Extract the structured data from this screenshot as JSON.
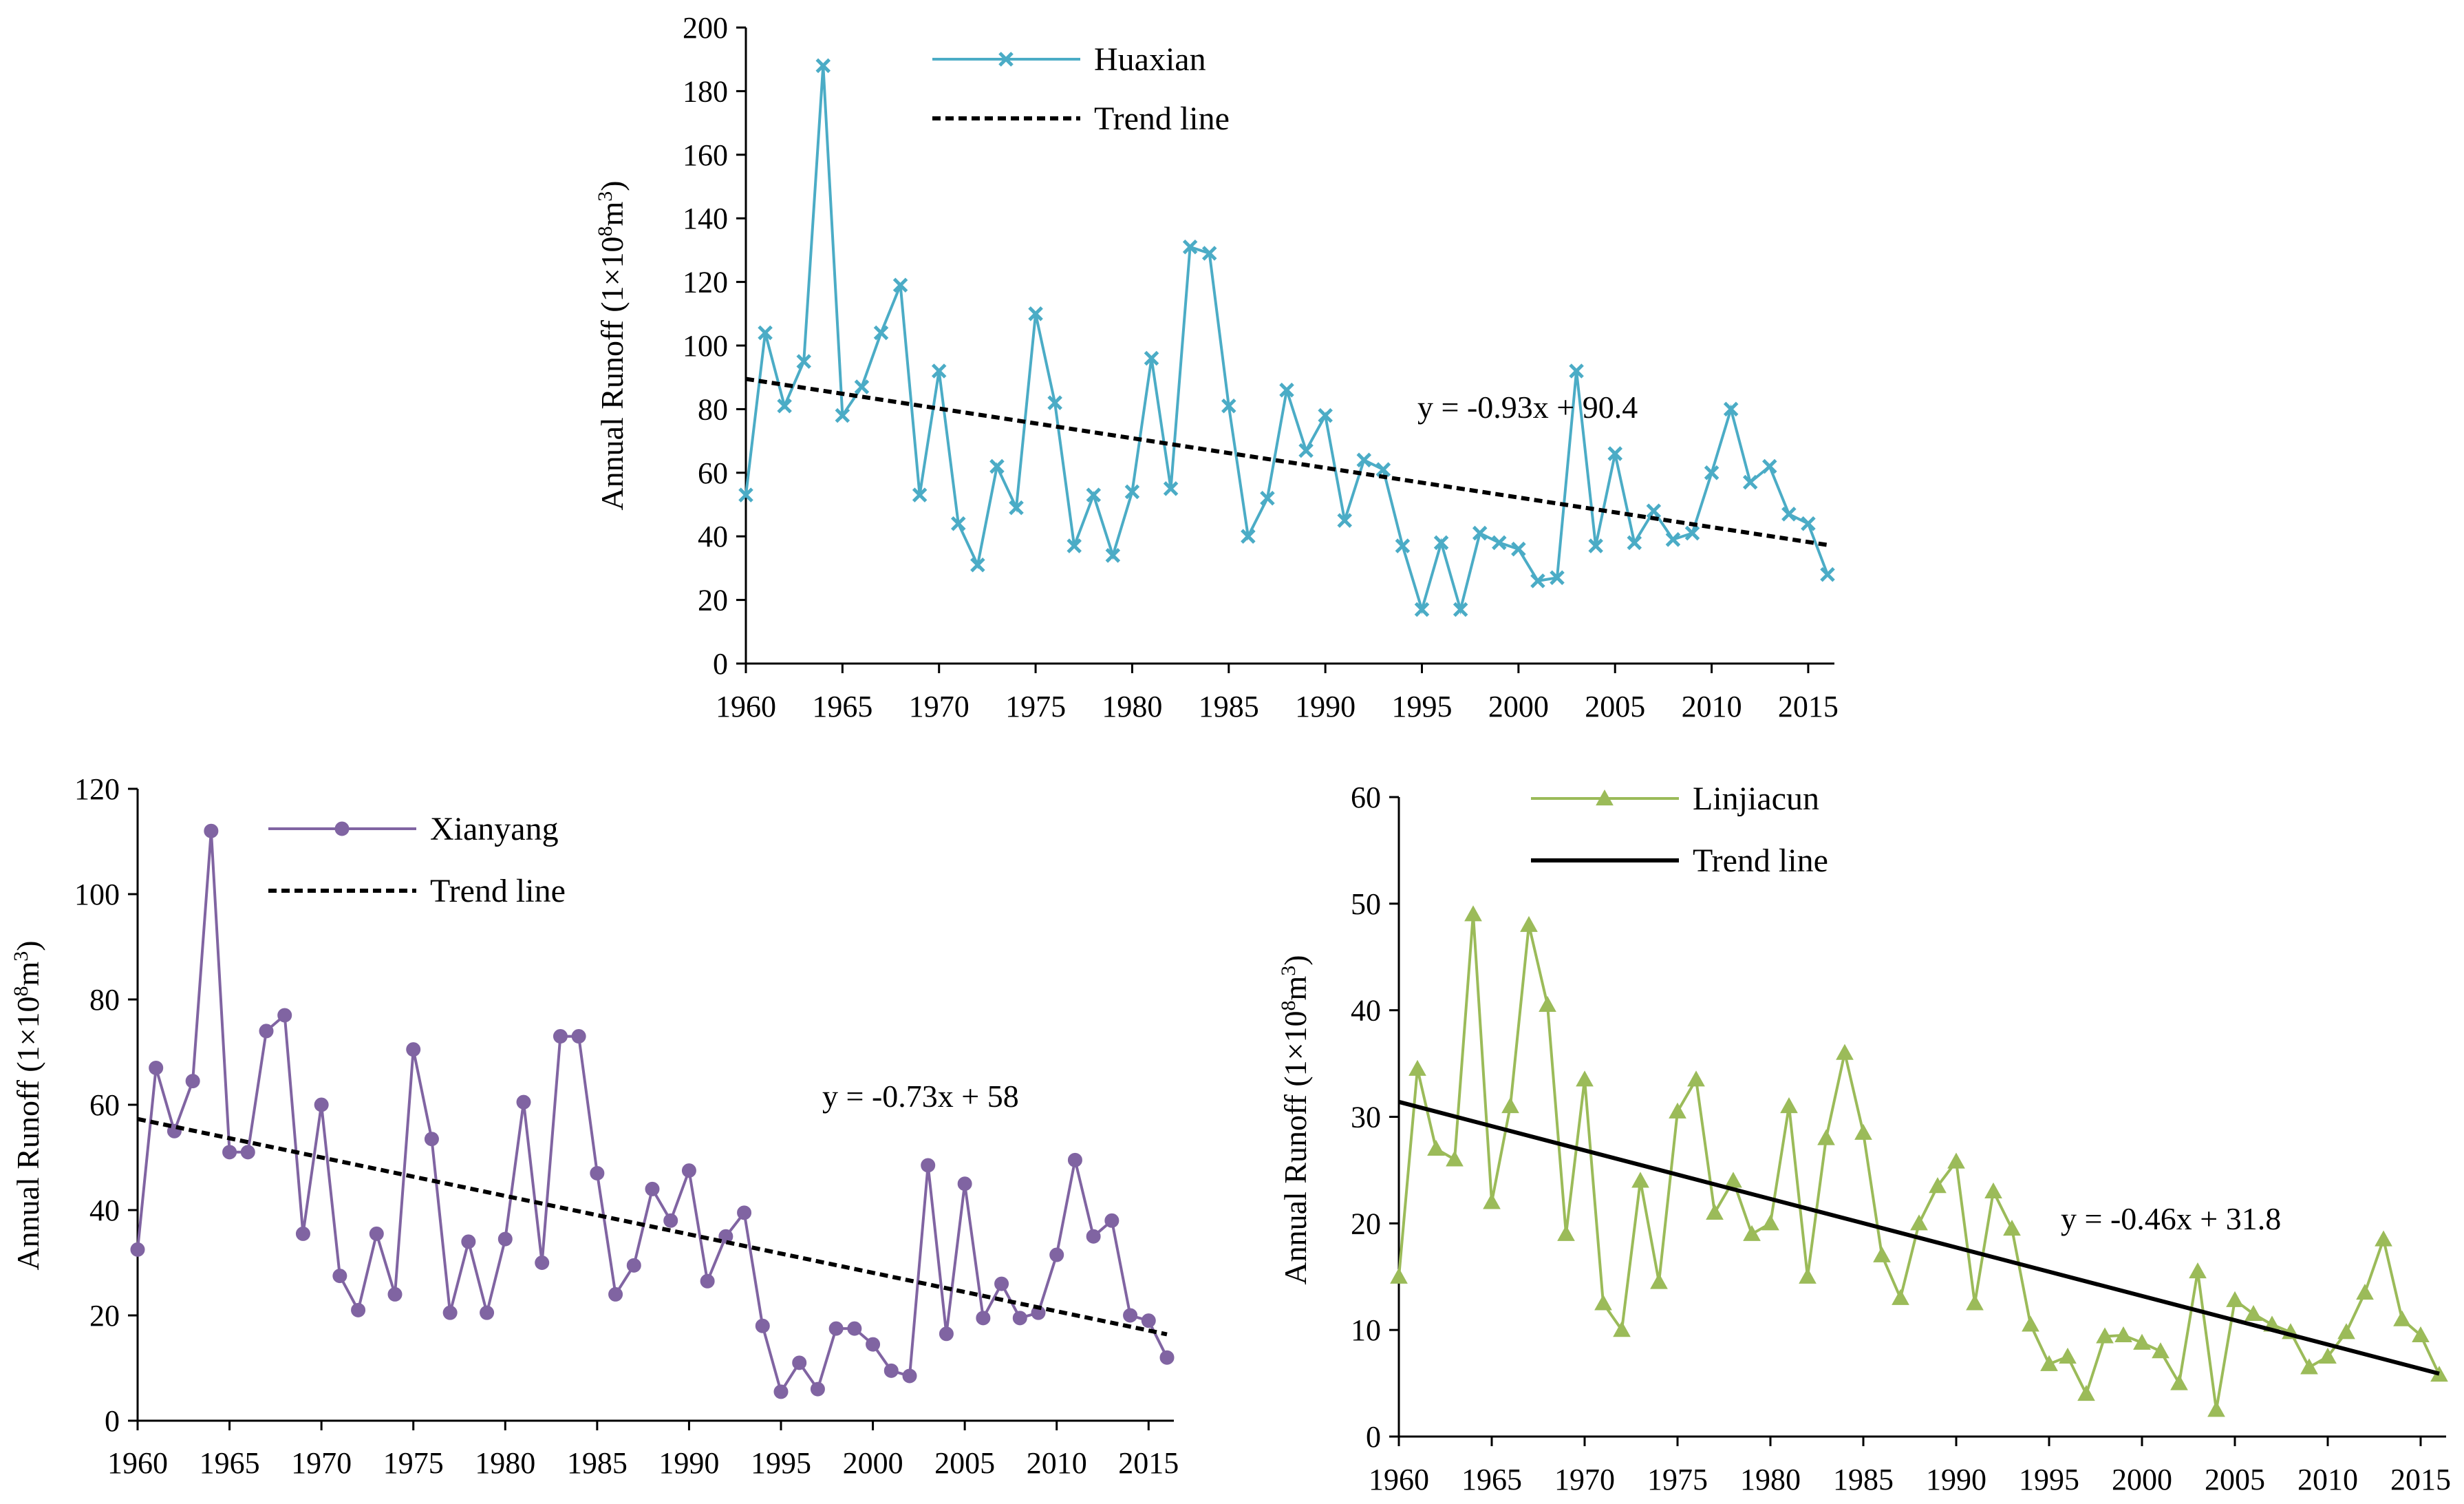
{
  "chart_data": [
    {
      "type": "line",
      "key": "huaxian",
      "ylabel": "Annual Runoff",
      "ylabel_unit_pre": "(1×10",
      "ylabel_unit_exp1": "8",
      "ylabel_unit_mid": "m",
      "ylabel_unit_exp2": "3",
      "ylabel_unit_post": ")",
      "xlim": [
        1960,
        2016
      ],
      "ylim": [
        0,
        200
      ],
      "xticks": [
        "1960",
        "1965",
        "1970",
        "1975",
        "1980",
        "1985",
        "1990",
        "1995",
        "2000",
        "2005",
        "2010",
        "2015"
      ],
      "yticks": [
        "0",
        "20",
        "40",
        "60",
        "80",
        "100",
        "120",
        "140",
        "160",
        "180",
        "200"
      ],
      "series": [
        {
          "name": "Huaxian",
          "color": "#4bacc6",
          "marker": "x",
          "x": [
            1960,
            1961,
            1962,
            1963,
            1964,
            1965,
            1966,
            1967,
            1968,
            1969,
            1970,
            1971,
            1972,
            1973,
            1974,
            1975,
            1976,
            1977,
            1978,
            1979,
            1980,
            1981,
            1982,
            1983,
            1984,
            1985,
            1986,
            1987,
            1988,
            1989,
            1990,
            1991,
            1992,
            1993,
            1994,
            1995,
            1996,
            1997,
            1998,
            1999,
            2000,
            2001,
            2002,
            2003,
            2004,
            2005,
            2006,
            2007,
            2008,
            2009,
            2010,
            2011,
            2012,
            2013,
            2014,
            2015,
            2016
          ],
          "values": [
            53,
            104,
            81,
            95,
            188,
            78,
            87,
            104,
            119,
            53,
            92,
            44,
            31,
            62,
            49,
            110,
            82,
            37,
            53,
            34,
            54,
            96,
            55,
            131,
            129,
            81,
            40,
            52,
            86,
            67,
            78,
            45,
            64,
            61,
            37,
            17,
            38,
            17,
            41,
            38,
            36,
            26,
            27,
            92,
            37,
            66,
            38,
            48,
            39,
            41,
            60,
            80,
            57,
            62,
            47,
            44,
            28
          ]
        },
        {
          "name": "Trend line",
          "color": "#000000",
          "style": "dashed",
          "x": [
            1960,
            2016
          ],
          "values": [
            89.5,
            37.3
          ]
        }
      ],
      "equation": "y = -0.93x + 90.4"
    },
    {
      "type": "line",
      "key": "xianyang",
      "ylabel": "Annual Runoff",
      "ylabel_unit_pre": "(1×10",
      "ylabel_unit_exp1": "8",
      "ylabel_unit_mid": "m",
      "ylabel_unit_exp2": "3",
      "ylabel_unit_post": ")",
      "xlim": [
        1960,
        2016
      ],
      "ylim": [
        0,
        120
      ],
      "xticks": [
        "1960",
        "1965",
        "1970",
        "1975",
        "1980",
        "1985",
        "1990",
        "1995",
        "2000",
        "2005",
        "2010",
        "2015"
      ],
      "yticks": [
        "0",
        "20",
        "40",
        "60",
        "80",
        "100",
        "120"
      ],
      "series": [
        {
          "name": "Xianyang",
          "color": "#8064a2",
          "marker": "circle",
          "x": [
            1960,
            1961,
            1962,
            1963,
            1964,
            1965,
            1966,
            1967,
            1968,
            1969,
            1970,
            1971,
            1972,
            1973,
            1974,
            1975,
            1976,
            1977,
            1978,
            1979,
            1980,
            1981,
            1982,
            1983,
            1984,
            1985,
            1986,
            1987,
            1988,
            1989,
            1990,
            1991,
            1992,
            1993,
            1994,
            1995,
            1996,
            1997,
            1998,
            1999,
            2000,
            2001,
            2002,
            2003,
            2004,
            2005,
            2006,
            2007,
            2008,
            2009,
            2010,
            2011,
            2012,
            2013,
            2014,
            2015,
            2016
          ],
          "values": [
            32.5,
            67,
            55,
            64.5,
            112,
            51,
            51,
            74,
            77,
            35.5,
            60,
            27.5,
            21,
            35.5,
            24,
            70.5,
            53.5,
            20.5,
            34,
            20.5,
            34.5,
            60.5,
            30,
            73,
            73,
            47,
            24,
            29.5,
            44,
            38,
            47.5,
            26.5,
            35,
            39.5,
            18,
            5.5,
            11,
            6,
            17.5,
            17.5,
            14.5,
            9.5,
            8.5,
            48.5,
            16.5,
            45,
            19.5,
            26,
            19.5,
            20.5,
            31.5,
            49.5,
            35,
            38,
            20,
            19,
            12
          ]
        },
        {
          "name": "Trend line",
          "color": "#000000",
          "style": "dashed",
          "x": [
            1960,
            2016
          ],
          "values": [
            57.3,
            16.4
          ]
        }
      ],
      "equation": "y = -0.73x + 58"
    },
    {
      "type": "line",
      "key": "linjiacun",
      "ylabel": "Annual Runoff",
      "ylabel_unit_pre": "(1×10",
      "ylabel_unit_exp1": "8",
      "ylabel_unit_mid": "m",
      "ylabel_unit_exp2": "3",
      "ylabel_unit_post": ")",
      "xlim": [
        1960,
        2016
      ],
      "ylim": [
        0,
        60
      ],
      "xticks": [
        "1960",
        "1965",
        "1970",
        "1975",
        "1980",
        "1985",
        "1990",
        "1995",
        "2000",
        "2005",
        "2010",
        "2015"
      ],
      "yticks": [
        "0",
        "10",
        "20",
        "30",
        "40",
        "50",
        "60"
      ],
      "series": [
        {
          "name": "Linjiacun",
          "color": "#9bbb59",
          "marker": "triangle",
          "x": [
            1960,
            1961,
            1962,
            1963,
            1964,
            1965,
            1966,
            1967,
            1968,
            1969,
            1970,
            1971,
            1972,
            1973,
            1974,
            1975,
            1976,
            1977,
            1978,
            1979,
            1980,
            1981,
            1982,
            1983,
            1984,
            1985,
            1986,
            1987,
            1988,
            1989,
            1990,
            1991,
            1992,
            1993,
            1994,
            1995,
            1996,
            1997,
            1998,
            1999,
            2000,
            2001,
            2002,
            2003,
            2004,
            2005,
            2006,
            2007,
            2008,
            2009,
            2010,
            2011,
            2012,
            2013,
            2014,
            2015,
            2016
          ],
          "values": [
            15,
            34.5,
            27,
            26,
            49,
            22,
            31,
            48,
            40.5,
            19,
            33.5,
            12.5,
            10,
            24,
            14.5,
            30.5,
            33.5,
            21,
            24,
            19,
            20,
            31,
            15,
            28,
            36,
            28.5,
            17,
            13,
            20,
            23.5,
            25.8,
            12.5,
            23,
            19.5,
            10.5,
            6.8,
            7.5,
            4,
            9.4,
            9.5,
            8.8,
            8,
            5,
            15.5,
            2.5,
            12.8,
            11.5,
            10.5,
            9.8,
            6.5,
            7.5,
            9.8,
            13.5,
            18.5,
            11,
            9.5,
            5.8
          ]
        },
        {
          "name": "Trend line",
          "color": "#000000",
          "style": "solid",
          "x": [
            1960,
            2016
          ],
          "values": [
            31.4,
            5.9
          ]
        }
      ],
      "equation": "y = -0.46x + 31.8"
    }
  ]
}
